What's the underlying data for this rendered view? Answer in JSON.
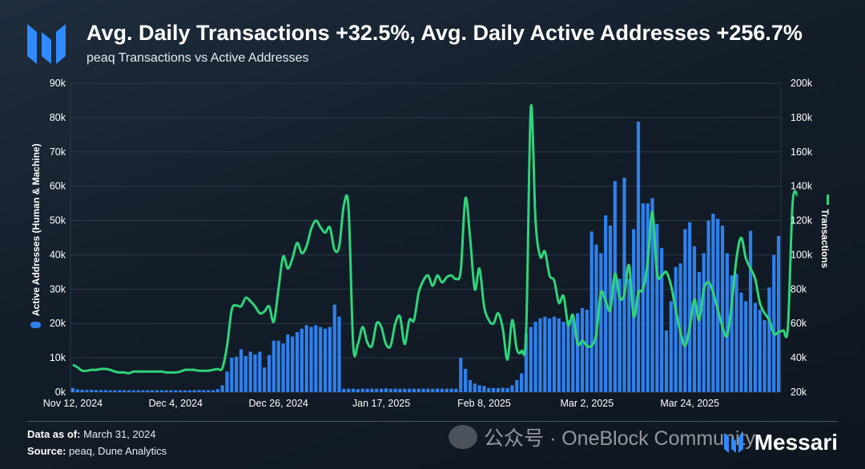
{
  "header": {
    "title": "Avg. Daily Transactions +32.5%, Avg. Daily Active Addresses +256.7%",
    "subtitle": "peaq Transactions vs Active Addresses"
  },
  "footer": {
    "data_as_of_label": "Data as of:",
    "data_as_of_value": "March 31, 2024",
    "source_label": "Source:",
    "source_value": "peaq, Dune Analytics",
    "watermark": "公众号 · OneBlock Community",
    "brand": "Messari"
  },
  "colors": {
    "bars": "#2f80ed",
    "line": "#2fd47a",
    "grid": "#2c3a48",
    "text": "#ffffff"
  },
  "chart_data": {
    "type": "bar+line",
    "x_tick_labels": [
      "Nov 12, 2024",
      "Dec 4, 2024",
      "Dec 26, 2024",
      "Jan 17, 2025",
      "Feb 8, 2025",
      "Mar 2, 2025",
      "Mar 24, 2025"
    ],
    "x_start": "Nov 12, 2024",
    "x_end": "Mar 31, 2025",
    "left_axis": {
      "label": "Active Addresses (Human & Machine)",
      "ticks": [
        "0k",
        "10k",
        "20k",
        "30k",
        "40k",
        "50k",
        "60k",
        "70k",
        "80k",
        "90k"
      ],
      "range": [
        0,
        90000
      ]
    },
    "right_axis": {
      "label": "Transactions",
      "ticks": [
        "20k",
        "40k",
        "60k",
        "80k",
        "100k",
        "120k",
        "140k",
        "160k",
        "180k",
        "200k"
      ],
      "range": [
        20000,
        200000
      ]
    },
    "series": [
      {
        "name": "Active Addresses (Human & Machine)",
        "kind": "bar",
        "axis": "left",
        "values": [
          1200,
          800,
          700,
          650,
          650,
          600,
          600,
          600,
          550,
          550,
          550,
          550,
          550,
          550,
          550,
          550,
          550,
          550,
          550,
          550,
          550,
          550,
          550,
          550,
          550,
          550,
          600,
          600,
          600,
          600,
          600,
          900,
          2000,
          6000,
          10000,
          10300,
          12500,
          10500,
          11800,
          11000,
          11800,
          7200,
          10800,
          15000,
          15000,
          14200,
          16800,
          16200,
          17500,
          18500,
          19500,
          19000,
          19500,
          19000,
          18500,
          19000,
          25500,
          22000,
          1000,
          1000,
          1000,
          900,
          1000,
          1000,
          1000,
          1000,
          1000,
          1100,
          1000,
          1000,
          1000,
          1000,
          1000,
          1000,
          1000,
          1000,
          1000,
          1000,
          1000,
          1000,
          1000,
          1000,
          1000,
          10000,
          6800,
          3500,
          2500,
          2000,
          1800,
          1200,
          1200,
          1200,
          1300,
          1200,
          2000,
          3500,
          5500,
          17000,
          19000,
          20500,
          21500,
          22000,
          21500,
          22000,
          21500,
          20500,
          21000,
          22000,
          23000,
          24500,
          24000,
          46800,
          43000,
          40500,
          51500,
          48500,
          61500,
          33000,
          62500,
          33000,
          47500,
          78800,
          55000,
          55000,
          56500,
          49000,
          42000,
          18000,
          26500,
          36500,
          37500,
          47500,
          49500,
          42500,
          35000,
          40500,
          50000,
          52000,
          50500,
          48500,
          40500,
          34000,
          34500,
          29000,
          26500,
          47000,
          26000,
          24000,
          21000,
          30500,
          40000,
          45500
        ]
      },
      {
        "name": "Transactions",
        "kind": "line",
        "axis": "right",
        "values": [
          36000,
          34500,
          32500,
          32500,
          33000,
          33000,
          33500,
          33500,
          33000,
          32000,
          31500,
          31500,
          31000,
          32000,
          32000,
          32000,
          32000,
          32000,
          32000,
          32000,
          31500,
          31500,
          31500,
          32000,
          33000,
          33000,
          33000,
          32500,
          32500,
          32500,
          33000,
          33500,
          34000,
          47000,
          68000,
          70500,
          70000,
          75000,
          73000,
          70000,
          66000,
          67000,
          70000,
          61000,
          80000,
          99000,
          92000,
          98000,
          107000,
          101000,
          105000,
          115000,
          120000,
          116000,
          113000,
          116000,
          103000,
          105000,
          129000,
          127000,
          47000,
          48000,
          58000,
          49000,
          47000,
          60000,
          58000,
          48000,
          47000,
          60000,
          64000,
          48000,
          62000,
          62000,
          78000,
          85000,
          88000,
          82000,
          88000,
          84000,
          87000,
          88000,
          86000,
          91000,
          133000,
          110000,
          80000,
          92000,
          70000,
          62000,
          60000,
          66000,
          57000,
          39000,
          62000,
          45000,
          44000,
          56000,
          186000,
          120000,
          99000,
          102000,
          88000,
          85000,
          72000,
          76000,
          59000,
          65000,
          48000,
          50000,
          47000,
          47000,
          54000,
          78000,
          73000,
          68000,
          89000,
          75000,
          77000,
          94000,
          64000,
          78000,
          80000,
          96000,
          125000,
          89000,
          88000,
          90000,
          82000,
          68000,
          55000,
          47000,
          58000,
          74000,
          62000,
          80000,
          84000,
          78000,
          68000,
          58000,
          53000,
          72000,
          98000,
          110000,
          98000,
          92000,
          86000,
          72000,
          66000,
          62000,
          54000,
          55000,
          56000,
          58000,
          130000,
          135000
        ]
      }
    ],
    "grid": true,
    "legend_position": "axis-labels"
  }
}
